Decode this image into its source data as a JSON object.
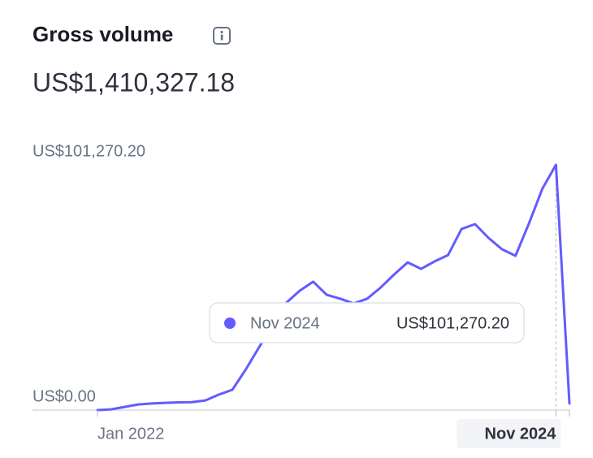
{
  "chart_data": {
    "type": "line",
    "title": "Gross volume",
    "subtitle": "US$1,410,327.18",
    "color": "#635bff",
    "categories": [
      "Jan 2022",
      null,
      null,
      null,
      null,
      null,
      null,
      null,
      null,
      null,
      null,
      null,
      null,
      null,
      null,
      null,
      null,
      null,
      null,
      null,
      null,
      null,
      null,
      null,
      null,
      null,
      null,
      null,
      null,
      null,
      null,
      null,
      null,
      null,
      "Nov 2024",
      null
    ],
    "values": [
      0,
      300,
      1300,
      2300,
      2700,
      3000,
      3200,
      3300,
      4000,
      6400,
      8400,
      16800,
      26100,
      35200,
      44300,
      49300,
      53000,
      47600,
      46000,
      44000,
      46000,
      50600,
      56000,
      61000,
      58300,
      61400,
      64000,
      74800,
      76800,
      71100,
      66400,
      63700,
      77100,
      91500,
      101270.2,
      2700
    ],
    "value_labels": [
      null,
      null,
      null,
      null,
      null,
      null,
      null,
      null,
      null,
      null,
      null,
      null,
      null,
      null,
      null,
      null,
      null,
      null,
      null,
      null,
      null,
      null,
      null,
      null,
      null,
      null,
      null,
      null,
      null,
      null,
      null,
      null,
      null,
      null,
      "US$101,270.20",
      null
    ],
    "ylim": [
      0,
      101270.2
    ],
    "yticks": [
      {
        "value": 0,
        "label": "US$0.00"
      },
      {
        "value": 101270.2,
        "label": "US$101,270.20"
      }
    ]
  }
}
